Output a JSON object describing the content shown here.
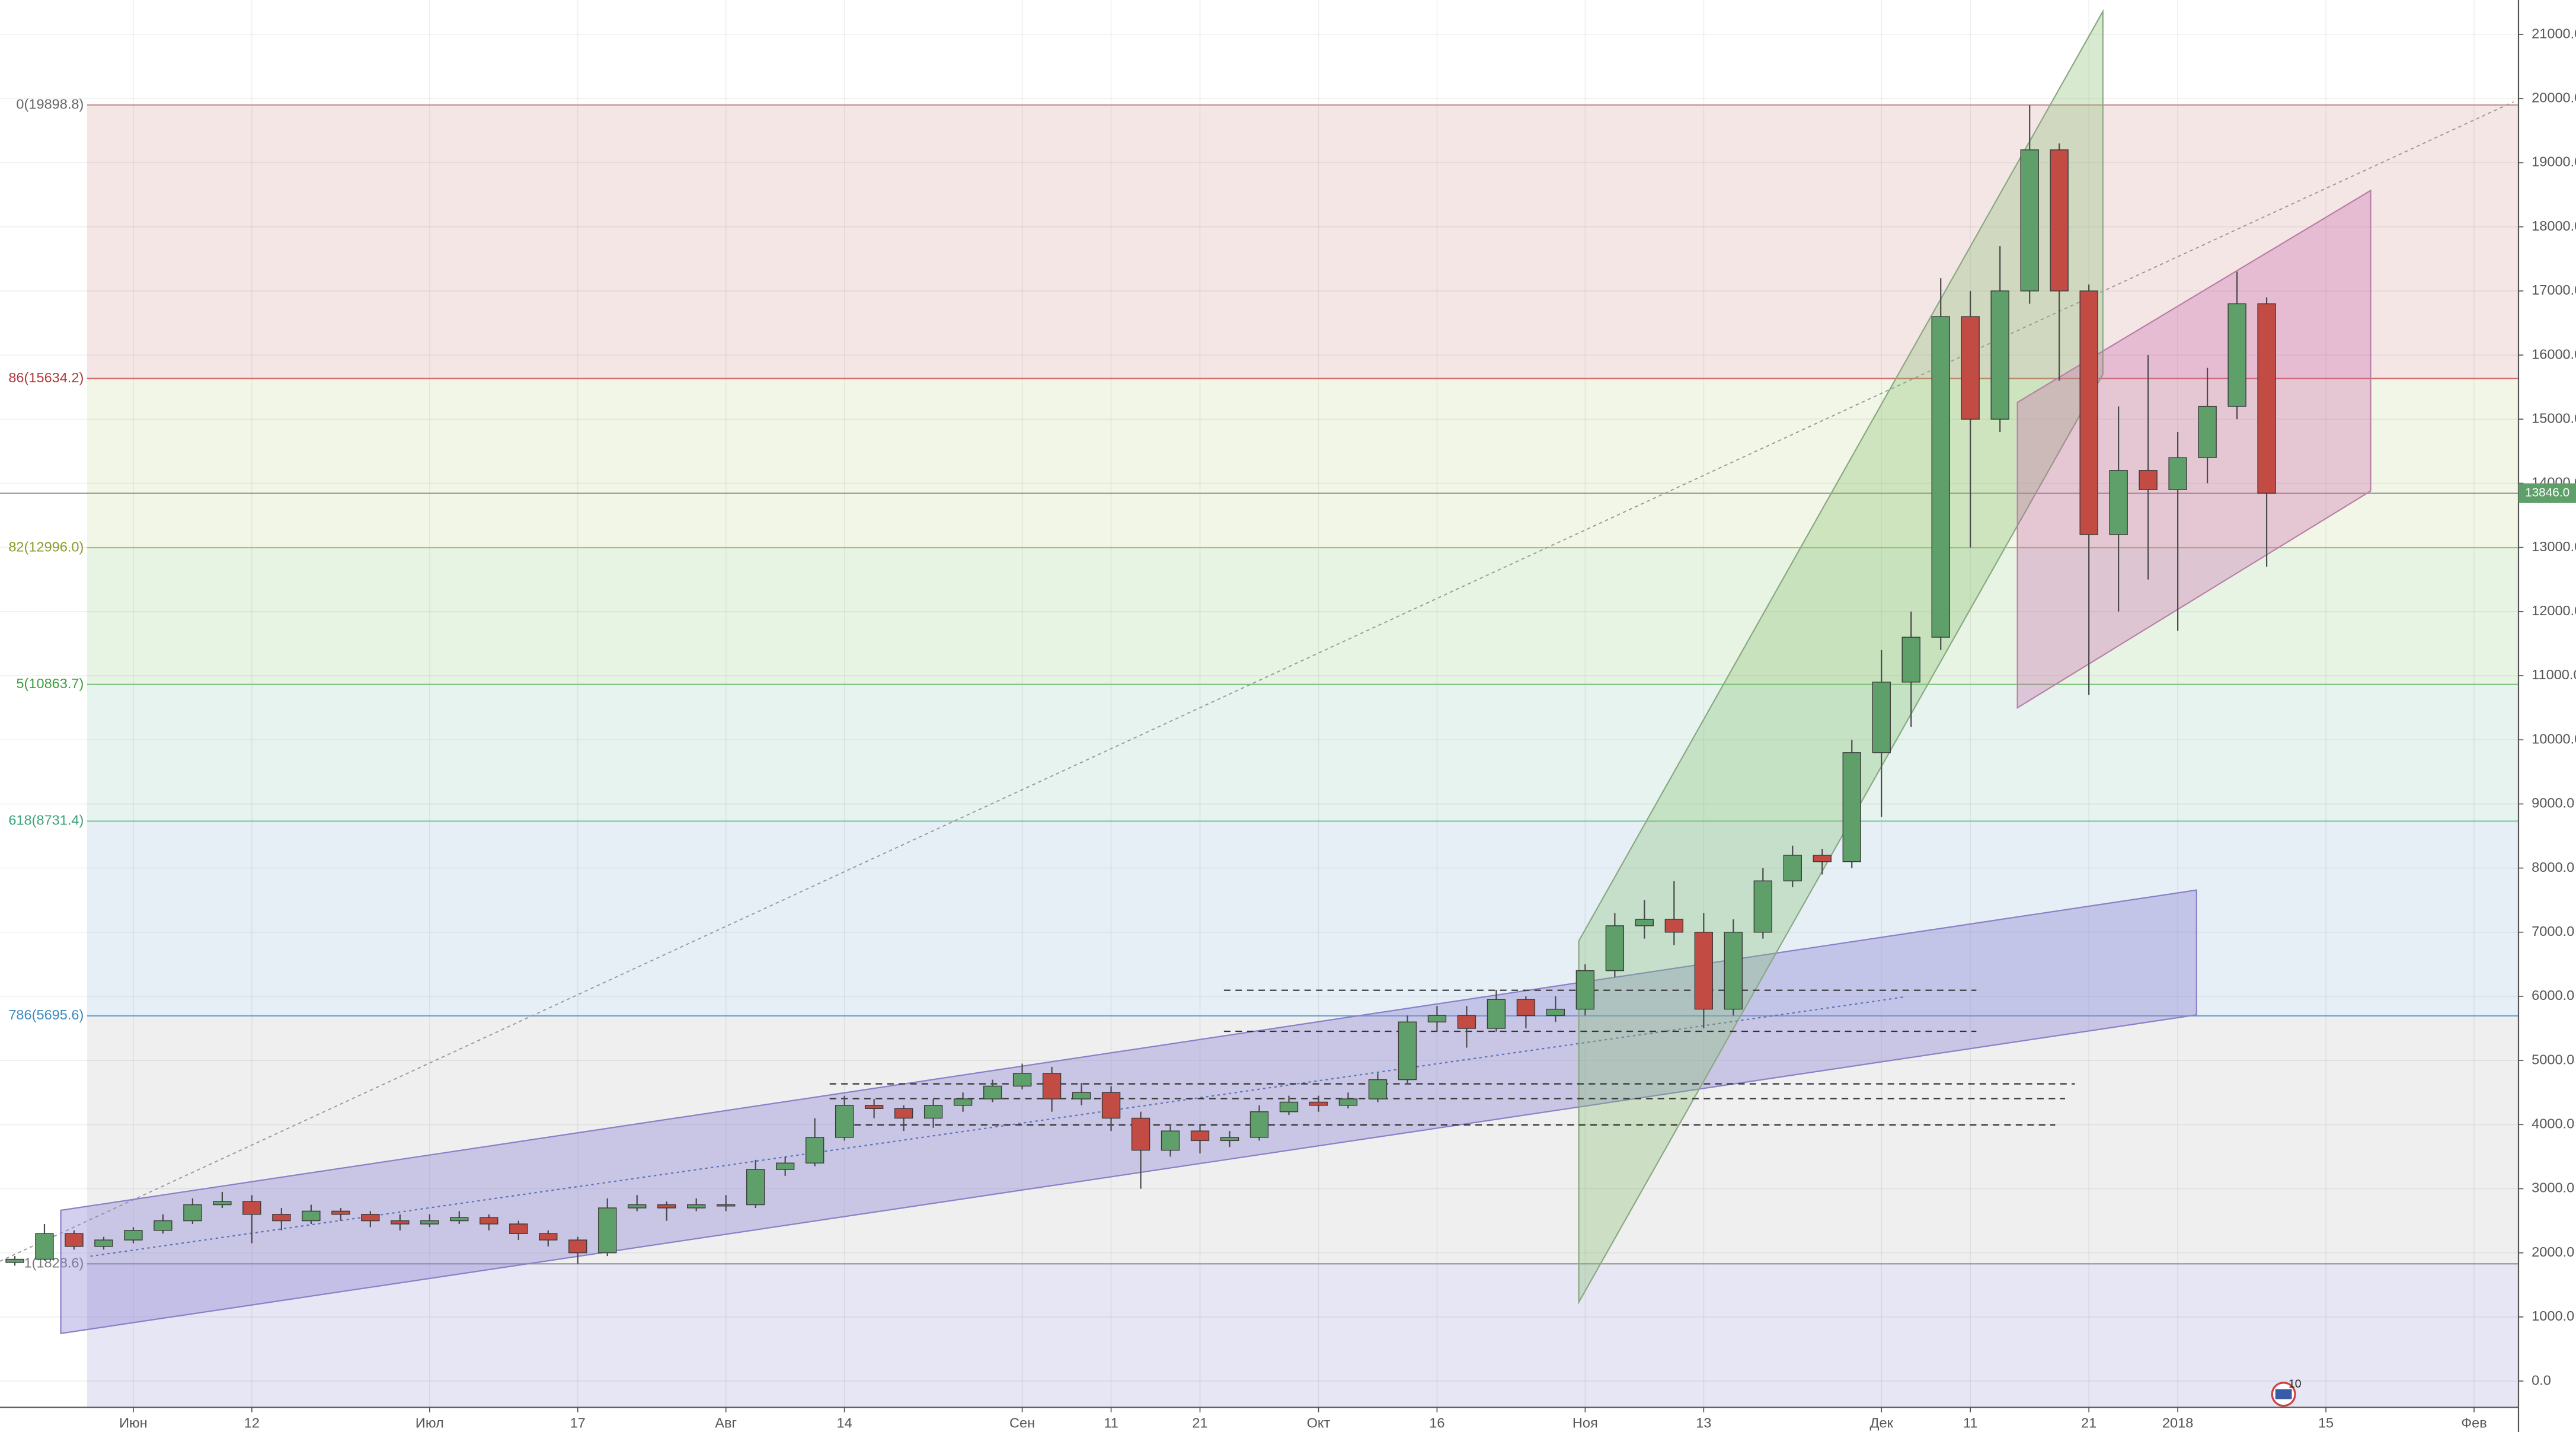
{
  "chart_data": {
    "type": "candlestick",
    "categories": [
      null,
      null,
      null,
      null,
      "Июн",
      null,
      null,
      null,
      "12",
      null,
      null,
      null,
      null,
      null,
      "Июл",
      null,
      null,
      null,
      null,
      "17",
      null,
      null,
      null,
      null,
      "Авг",
      null,
      null,
      null,
      "14",
      null,
      null,
      null,
      null,
      null,
      "Сен",
      null,
      null,
      "11",
      null,
      null,
      "21",
      null,
      null,
      null,
      "Окт",
      null,
      null,
      null,
      "16",
      null,
      null,
      null,
      null,
      "Ноя",
      null,
      null,
      null,
      "13",
      null,
      null,
      null,
      null,
      null,
      "Дек",
      null,
      null,
      "11",
      null,
      null,
      null,
      "21",
      null,
      null,
      "2018",
      null,
      null,
      null,
      null,
      "15",
      null,
      null,
      null,
      null,
      "Фев",
      null
    ],
    "open": [
      1850,
      1900,
      2300,
      2100,
      2200,
      2350,
      2500,
      2750,
      2800,
      2600,
      2500,
      2650,
      2600,
      2500,
      2450,
      2500,
      2550,
      2450,
      2300,
      2200,
      2000,
      2700,
      2750,
      2700,
      2750,
      2750,
      3300,
      3400,
      3800,
      4300,
      4250,
      4100,
      4300,
      4400,
      4600,
      4800,
      4400,
      4500,
      4100,
      3600,
      3900,
      3750,
      3800,
      4200,
      4350,
      4300,
      4400,
      4700,
      5600,
      5700,
      5500,
      5950,
      5700,
      5800,
      6400,
      7100,
      7200,
      7000,
      5800,
      7000,
      7800,
      8200,
      8100,
      9800,
      10900,
      11600,
      16600,
      15000,
      17000,
      19200,
      17000,
      13200,
      14200,
      13900,
      14400,
      15200,
      16800,
      null,
      null,
      null,
      null,
      null,
      null,
      null,
      null
    ],
    "high": [
      1950,
      2450,
      2350,
      2250,
      2400,
      2600,
      2850,
      2950,
      2900,
      2700,
      2750,
      2700,
      2650,
      2600,
      2600,
      2650,
      2600,
      2500,
      2350,
      2250,
      2850,
      2900,
      2800,
      2850,
      2900,
      3450,
      3500,
      4100,
      4450,
      4400,
      4300,
      4400,
      4500,
      4700,
      4950,
      4900,
      4650,
      4600,
      4200,
      4000,
      4000,
      3900,
      4300,
      4450,
      4450,
      4500,
      4800,
      5700,
      5850,
      5850,
      6100,
      6000,
      6000,
      6500,
      7300,
      7500,
      7800,
      7300,
      7200,
      8000,
      8350,
      8300,
      10000,
      11400,
      12000,
      17200,
      17000,
      17700,
      19900,
      19300,
      17100,
      15200,
      16000,
      14800,
      15800,
      17300,
      16900,
      null,
      null,
      null,
      null,
      null,
      null,
      null,
      null
    ],
    "low": [
      1800,
      1880,
      2050,
      2050,
      2150,
      2300,
      2450,
      2700,
      2150,
      2350,
      2450,
      2500,
      2400,
      2350,
      2400,
      2450,
      2350,
      2200,
      2100,
      1830,
      1950,
      2650,
      2500,
      2650,
      2650,
      2700,
      3200,
      3350,
      3750,
      4100,
      3900,
      3950,
      4200,
      4350,
      4550,
      4200,
      4300,
      3900,
      3000,
      3500,
      3550,
      3650,
      3750,
      4150,
      4200,
      4250,
      4350,
      4650,
      5450,
      5200,
      5450,
      5500,
      5600,
      5700,
      6300,
      6900,
      6800,
      5500,
      5700,
      6900,
      7700,
      7900,
      8000,
      8800,
      10200,
      11400,
      13000,
      14800,
      16800,
      15600,
      10700,
      12000,
      12500,
      11700,
      14000,
      15000,
      12700,
      null,
      null,
      null,
      null,
      null,
      null,
      null,
      null
    ],
    "close": [
      1900,
      2300,
      2100,
      2200,
      2350,
      2500,
      2750,
      2800,
      2600,
      2500,
      2650,
      2600,
      2500,
      2450,
      2500,
      2550,
      2450,
      2300,
      2200,
      2000,
      2700,
      2750,
      2700,
      2750,
      2750,
      3300,
      3400,
      3800,
      4300,
      4250,
      4100,
      4300,
      4400,
      4600,
      4800,
      4400,
      4500,
      4100,
      3600,
      3900,
      3750,
      3800,
      4200,
      4350,
      4300,
      4400,
      4700,
      5600,
      5700,
      5500,
      5950,
      5700,
      5800,
      6400,
      7100,
      7200,
      7000,
      5800,
      7000,
      7800,
      8200,
      8100,
      9800,
      10900,
      11600,
      16600,
      15000,
      17000,
      19200,
      17000,
      13200,
      14200,
      13900,
      14400,
      15200,
      16800,
      13846,
      null,
      null,
      null,
      null,
      null,
      null,
      null,
      null
    ],
    "up_color": "#5f9f6a",
    "down_color": "#c24b43",
    "ylim": [
      -410,
      21537
    ],
    "yticks": [
      {
        "value": 0,
        "label": "0.0"
      },
      {
        "value": 1000,
        "label": "1000.0"
      },
      {
        "value": 2000,
        "label": "2000.0"
      },
      {
        "value": 3000,
        "label": "3000.0"
      },
      {
        "value": 4000,
        "label": "4000.0"
      },
      {
        "value": 5000,
        "label": "5000.0"
      },
      {
        "value": 6000,
        "label": "6000.0"
      },
      {
        "value": 7000,
        "label": "7000.0"
      },
      {
        "value": 8000,
        "label": "8000.0"
      },
      {
        "value": 9000,
        "label": "9000.0"
      },
      {
        "value": 10000,
        "label": "10000.0"
      },
      {
        "value": 11000,
        "label": "11000.0"
      },
      {
        "value": 12000,
        "label": "12000.0"
      },
      {
        "value": 13000,
        "label": "13000.0"
      },
      {
        "value": 14000,
        "label": "14000.0"
      },
      {
        "value": 15000,
        "label": "15000.0"
      },
      {
        "value": 16000,
        "label": "16000.0"
      },
      {
        "value": 17000,
        "label": "17000.0"
      },
      {
        "value": 18000,
        "label": "18000.0"
      },
      {
        "value": 19000,
        "label": "19000.0"
      },
      {
        "value": 20000,
        "label": "20000.0"
      },
      {
        "value": 21000,
        "label": "21000.0"
      }
    ],
    "grid": true,
    "last_price": {
      "value": 13846,
      "label": "13846.0"
    },
    "fib_levels": [
      {
        "value": 19898.8,
        "label": "0(19898.8)",
        "color": "#c79393",
        "text_color": "#666666",
        "fill": "#f5e6e6"
      },
      {
        "value": 15634.2,
        "label": "86(15634.2)",
        "color": "#d46a6a",
        "text_color": "#b33a3a",
        "fill": "#f2f6e6"
      },
      {
        "value": 12996.0,
        "label": "82(12996.0)",
        "color": "#a9c26a",
        "text_color": "#8a9b2a",
        "fill": "#e8f4e3"
      },
      {
        "value": 10863.7,
        "label": "5(10863.7)",
        "color": "#7cc47c",
        "text_color": "#3f9f3f",
        "fill": "#e6f3ef"
      },
      {
        "value": 8731.4,
        "label": "618(8731.4)",
        "color": "#7cc4a4",
        "text_color": "#3fa37a",
        "fill": "#e6eff6"
      },
      {
        "value": 5695.6,
        "label": "786(5695.6)",
        "color": "#6ba3cc",
        "text_color": "#3b8bc2",
        "fill": "#efefef"
      },
      {
        "value": 1828.6,
        "label": "1(1828.6)",
        "color": "#9a9a9a",
        "text_color": "#777777",
        "fill": "#e6e6f4"
      }
    ],
    "badge": "10"
  }
}
